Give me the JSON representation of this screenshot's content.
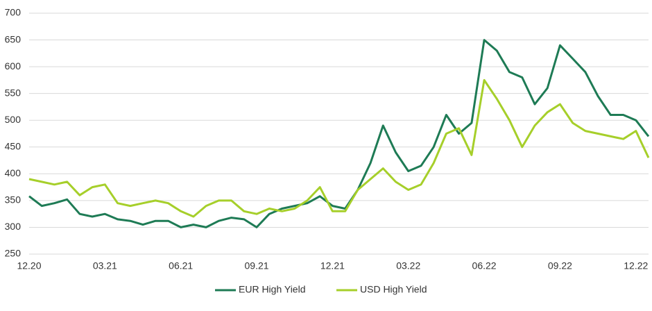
{
  "chart_data": {
    "type": "line",
    "categories": [
      "12.20",
      null,
      null,
      null,
      null,
      null,
      "03.21",
      null,
      null,
      null,
      null,
      null,
      "06.21",
      null,
      null,
      null,
      null,
      null,
      "09.21",
      null,
      null,
      null,
      null,
      null,
      "12.21",
      null,
      null,
      null,
      null,
      null,
      "03.22",
      null,
      null,
      null,
      null,
      null,
      "06.22",
      null,
      null,
      null,
      null,
      null,
      "09.22",
      null,
      null,
      null,
      null,
      null,
      "12.22",
      null
    ],
    "series": [
      {
        "name": "EUR High Yield",
        "color": "#1e7b55",
        "values": [
          358,
          340,
          345,
          352,
          325,
          320,
          325,
          315,
          312,
          305,
          312,
          312,
          300,
          305,
          300,
          312,
          318,
          315,
          300,
          325,
          335,
          340,
          345,
          358,
          340,
          335,
          370,
          420,
          490,
          440,
          405,
          415,
          450,
          510,
          475,
          495,
          650,
          630,
          590,
          580,
          530,
          560,
          640,
          615,
          590,
          545,
          510,
          510,
          500,
          470
        ]
      },
      {
        "name": "USD High Yield",
        "color": "#a6cf2a",
        "values": [
          390,
          385,
          380,
          385,
          360,
          375,
          380,
          345,
          340,
          345,
          350,
          345,
          330,
          320,
          340,
          350,
          350,
          330,
          325,
          335,
          330,
          335,
          350,
          375,
          330,
          330,
          370,
          390,
          410,
          385,
          370,
          380,
          420,
          475,
          485,
          435,
          575,
          540,
          500,
          450,
          490,
          515,
          530,
          495,
          480,
          475,
          470,
          465,
          480,
          430
        ]
      }
    ],
    "ylim": [
      250,
      700
    ],
    "yticks": [
      250,
      300,
      350,
      400,
      450,
      500,
      550,
      600,
      650,
      700
    ],
    "grid": true,
    "legend": "bottom"
  }
}
